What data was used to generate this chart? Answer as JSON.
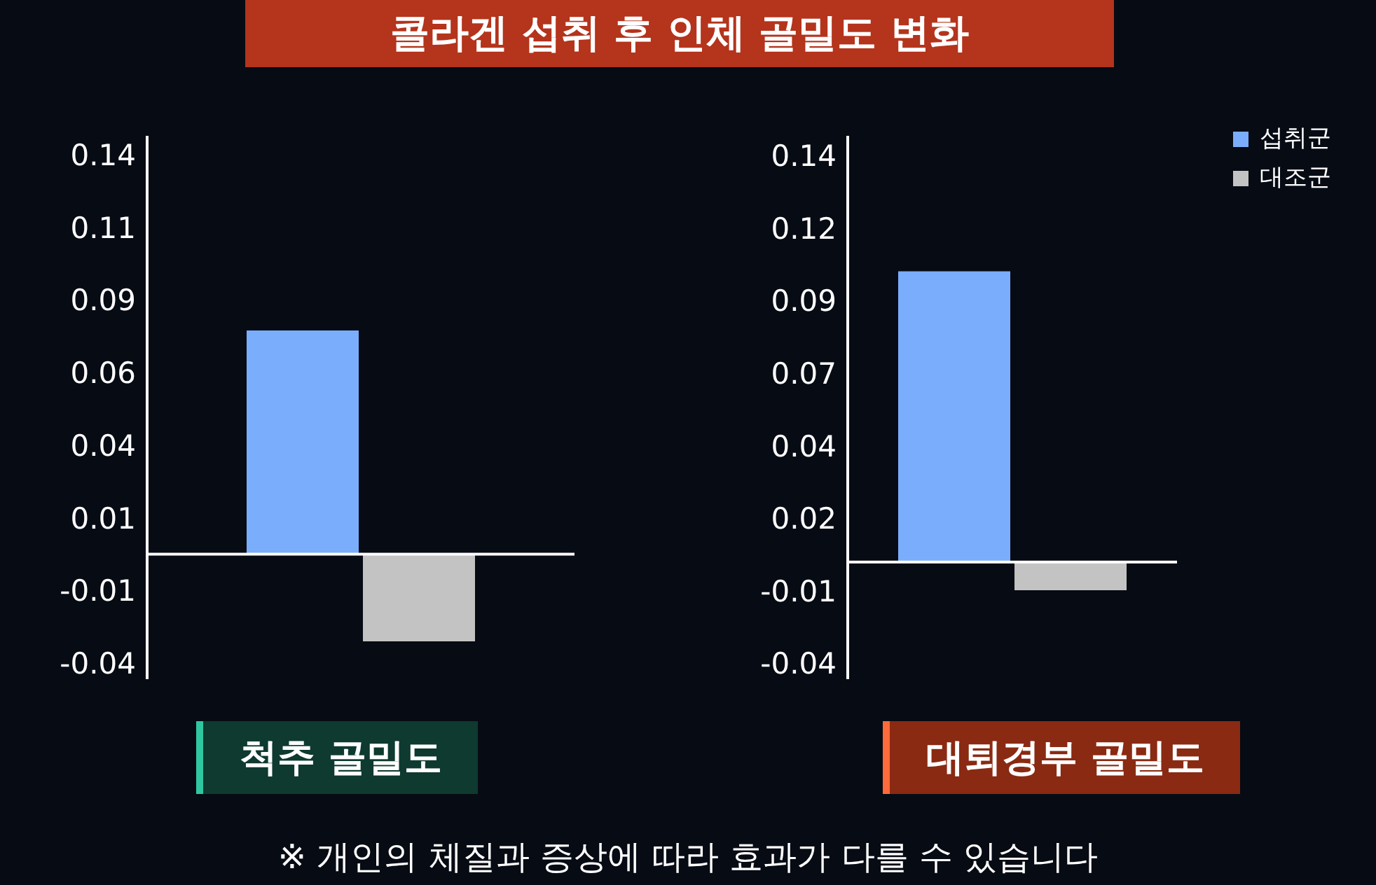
{
  "chart_data": [
    {
      "type": "bar",
      "title": "콜라겐 섭취 후 인체 골밀도 변화",
      "xlabel": "척추 골밀도",
      "categories": [
        null
      ],
      "series": [
        {
          "color": "#7aaefc",
          "values": [
            0.077
          ]
        },
        {
          "color": "#c3c3c3",
          "values": [
            -0.03
          ]
        }
      ],
      "ylim": [
        -0.043,
        0.144
      ],
      "yticks": [
        {
          "value": 0.1375,
          "label": "0.14"
        },
        {
          "value": 0.1125,
          "label": "0.11"
        },
        {
          "value": 0.0875,
          "label": "0.09"
        },
        {
          "value": 0.0625,
          "label": "0.06"
        },
        {
          "value": 0.0375,
          "label": "0.04"
        },
        {
          "value": 0.0125,
          "label": "0.01"
        },
        {
          "value": -0.0125,
          "label": "-0.01"
        },
        {
          "value": -0.0375,
          "label": "-0.04"
        }
      ],
      "tick_labels": "y",
      "legend": false,
      "annotations": [
        "※ 개인의 체질과 증상에 따라 효과가 다를 수 있습니다"
      ]
    },
    {
      "type": "bar",
      "xlabel": "대퇴경부 골밀도",
      "categories": [
        null
      ],
      "series": [
        {
          "name": "섭취군",
          "color": "#7aaefc",
          "values": [
            0.103
          ]
        },
        {
          "name": "대조군",
          "color": "#c3c3c3",
          "values": [
            -0.01
          ]
        }
      ],
      "ylim": [
        -0.0415,
        0.151
      ],
      "yticks": [
        {
          "value": 0.144,
          "label": "0.14"
        },
        {
          "value": 0.1183,
          "label": "0.12"
        },
        {
          "value": 0.0926,
          "label": "0.09"
        },
        {
          "value": 0.0669,
          "label": "0.07"
        },
        {
          "value": 0.0412,
          "label": "0.04"
        },
        {
          "value": 0.0155,
          "label": "0.02"
        },
        {
          "value": -0.0102,
          "label": "-0.01"
        },
        {
          "value": -0.0359,
          "label": "-0.04"
        }
      ],
      "tick_labels": "y",
      "legend": "top right"
    }
  ]
}
